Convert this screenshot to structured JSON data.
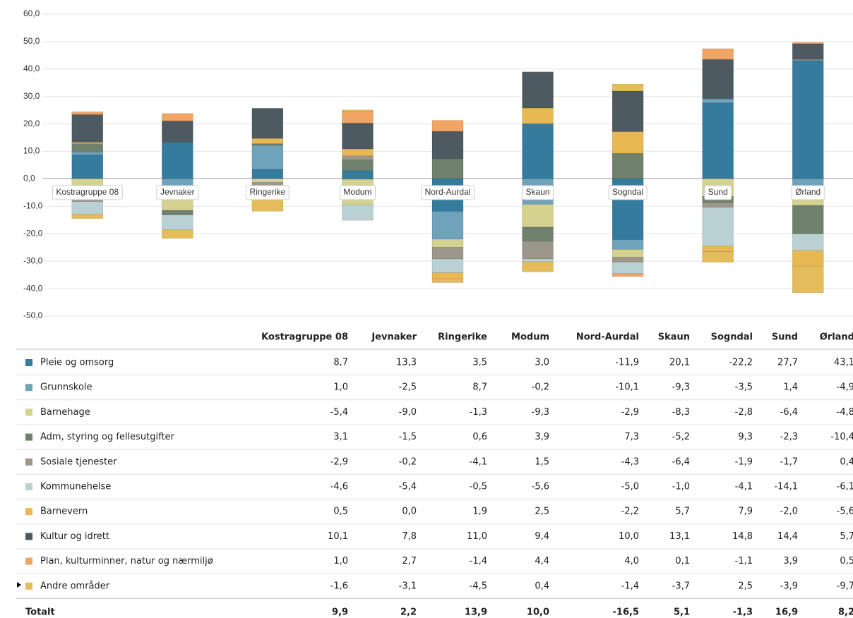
{
  "chart_data": {
    "type": "bar",
    "categories": [
      "Kostragruppe 08",
      "Jevnaker",
      "Ringerike",
      "Modum",
      "Nord-Aurdal",
      "Skaun",
      "Sogndal",
      "Sund",
      "Ørland"
    ],
    "ylim": [
      -50,
      60
    ],
    "yticks": [
      {
        "value": -50,
        "label": "-50,0"
      },
      {
        "value": -40,
        "label": "-40,0"
      },
      {
        "value": -30,
        "label": "-30,0"
      },
      {
        "value": -20,
        "label": "-20,0"
      },
      {
        "value": -10,
        "label": "-10,0"
      },
      {
        "value": 0,
        "label": "0,0"
      },
      {
        "value": 10,
        "label": "10,0"
      },
      {
        "value": 20,
        "label": "20,0"
      },
      {
        "value": 30,
        "label": "30,0"
      },
      {
        "value": 40,
        "label": "40,0"
      },
      {
        "value": 50,
        "label": "50,0"
      },
      {
        "value": 60,
        "label": "60,0"
      }
    ],
    "grid": true,
    "series": [
      {
        "name": "Pleie og omsorg",
        "color": "#357b9d",
        "values": [
          8.7,
          13.3,
          3.5,
          3.0,
          -11.9,
          20.1,
          -22.2,
          27.7,
          43.1
        ],
        "value_labels": [
          "8,7",
          "13,3",
          "3,5",
          "3,0",
          "-11,9",
          "20,1",
          "-22,2",
          "27,7",
          "43,1"
        ]
      },
      {
        "name": "Grunnskole",
        "color": "#6fa3bb",
        "values": [
          1.0,
          -2.5,
          8.7,
          -0.2,
          -10.1,
          -9.3,
          -3.5,
          1.4,
          -4.9
        ],
        "value_labels": [
          "1,0",
          "-2,5",
          "8,7",
          "-0,2",
          "-10,1",
          "-9,3",
          "-3,5",
          "1,4",
          "-4,9"
        ]
      },
      {
        "name": "Barnehage",
        "color": "#d5d290",
        "values": [
          -5.4,
          -9.0,
          -1.3,
          -9.3,
          -2.9,
          -8.3,
          -2.8,
          -6.4,
          -4.8
        ],
        "value_labels": [
          "-5,4",
          "-9,0",
          "-1,3",
          "-9,3",
          "-2,9",
          "-8,3",
          "-2,8",
          "-6,4",
          "-4,8"
        ]
      },
      {
        "name": "Adm, styring og fellesutgifter",
        "color": "#6f806c",
        "values": [
          3.1,
          -1.5,
          0.6,
          3.9,
          7.3,
          -5.2,
          9.3,
          -2.3,
          -10.4
        ],
        "value_labels": [
          "3,1",
          "-1,5",
          "0,6",
          "3,9",
          "7,3",
          "-5,2",
          "9,3",
          "-2,3",
          "-10,4"
        ]
      },
      {
        "name": "Sosiale tjenester",
        "color": "#9d968a",
        "values": [
          -2.9,
          -0.2,
          -4.1,
          1.5,
          -4.3,
          -6.4,
          -1.9,
          -1.7,
          0.4
        ],
        "value_labels": [
          "-2,9",
          "-0,2",
          "-4,1",
          "1,5",
          "-4,3",
          "-6,4",
          "-1,9",
          "-1,7",
          "0,4"
        ]
      },
      {
        "name": "Kommunehelse",
        "color": "#bad1d3",
        "values": [
          -4.6,
          -5.4,
          -0.5,
          -5.6,
          -5.0,
          -1.0,
          -4.1,
          -14.1,
          -6.1
        ],
        "value_labels": [
          "-4,6",
          "-5,4",
          "-0,5",
          "-5,6",
          "-5,0",
          "-1,0",
          "-4,1",
          "-14,1",
          "-6,1"
        ]
      },
      {
        "name": "Barnevern",
        "color": "#e8b952",
        "values": [
          0.5,
          0.0,
          1.9,
          2.5,
          -2.2,
          5.7,
          7.9,
          -2.0,
          -5.6
        ],
        "value_labels": [
          "0,5",
          "0,0",
          "1,9",
          "2,5",
          "-2,2",
          "5,7",
          "7,9",
          "-2,0",
          "-5,6"
        ]
      },
      {
        "name": "Kultur og idrett",
        "color": "#4e5a61",
        "values": [
          10.1,
          7.8,
          11.0,
          9.4,
          10.0,
          13.1,
          14.8,
          14.4,
          5.7
        ],
        "value_labels": [
          "10,1",
          "7,8",
          "11,0",
          "9,4",
          "10,0",
          "13,1",
          "14,8",
          "14,4",
          "5,7"
        ]
      },
      {
        "name": "Plan, kulturminner, natur og nærmiljø",
        "color": "#f2a563",
        "values": [
          1.0,
          2.7,
          -1.4,
          4.4,
          4.0,
          0.1,
          -1.1,
          3.9,
          0.5
        ],
        "value_labels": [
          "1,0",
          "2,7",
          "-1,4",
          "4,4",
          "4,0",
          "0,1",
          "-1,1",
          "3,9",
          "0,5"
        ]
      },
      {
        "name": "Andre områder",
        "color": "#e5bc5c",
        "values": [
          -1.6,
          -3.1,
          -4.5,
          0.4,
          -1.4,
          -3.7,
          2.5,
          -3.9,
          -9.7
        ],
        "value_labels": [
          "-1,6",
          "-3,1",
          "-4,5",
          "0,4",
          "-1,4",
          "-3,7",
          "2,5",
          "-3,9",
          "-9,7"
        ]
      }
    ],
    "total": {
      "name": "Totalt",
      "values": [
        9.9,
        2.2,
        13.9,
        10.0,
        -16.5,
        5.1,
        -1.3,
        16.9,
        8.2
      ],
      "value_labels": [
        "9,9",
        "2,2",
        "13,9",
        "10,0",
        "-16,5",
        "5,1",
        "-1,3",
        "16,9",
        "8,2"
      ]
    }
  }
}
